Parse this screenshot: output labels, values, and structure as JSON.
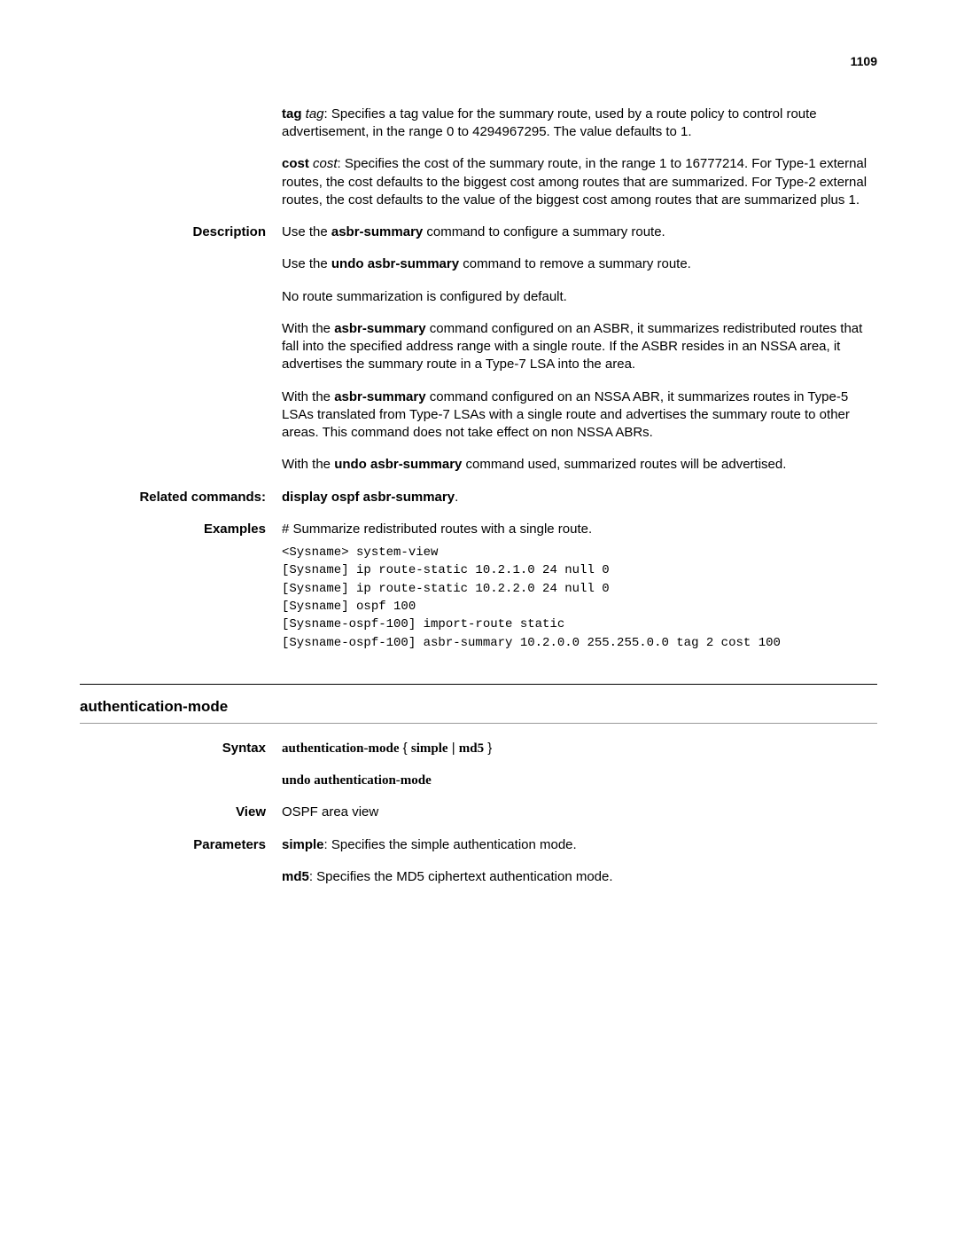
{
  "page_number": "1109",
  "params": {
    "tag": {
      "name": "tag",
      "var": "tag",
      "text": ": Specifies a tag value for the summary route, used by a route policy to control route advertisement, in the range 0 to 4294967295. The value defaults to 1."
    },
    "cost": {
      "name": "cost",
      "var": "cost",
      "text": ": Specifies the cost of the summary route, in the range 1 to 16777214. For Type-1 external routes, the cost defaults to the biggest cost among routes that are summarized. For Type-2 external routes, the cost defaults to the value of the biggest cost among routes that are summarized plus 1."
    }
  },
  "description": {
    "label": "Description",
    "p1_pre": "Use the ",
    "p1_cmd": "asbr-summary",
    "p1_post": " command to configure a summary route.",
    "p2_pre": "Use the ",
    "p2_cmd": "undo asbr-summary",
    "p2_post": " command to remove a summary route.",
    "p3": "No route summarization is configured by default.",
    "p4_pre": "With the ",
    "p4_cmd": "asbr-summary",
    "p4_post": " command configured on an ASBR, it summarizes redistributed routes that fall into the specified address range with a single route. If the ASBR resides in an NSSA area, it advertises the summary route in a Type-7 LSA into the area.",
    "p5_pre": "With the ",
    "p5_cmd": "asbr-summary",
    "p5_post": " command configured on an NSSA ABR, it summarizes routes in Type-5 LSAs translated from Type-7 LSAs with a single route and advertises the summary route to other areas. This command does not take effect on non NSSA ABRs.",
    "p6_pre": "With the ",
    "p6_cmd": "undo asbr-summary",
    "p6_post": " command used, summarized routes will be advertised."
  },
  "related": {
    "label": "Related commands:",
    "cmd": "display ospf asbr-summary",
    "period": "."
  },
  "examples": {
    "label": "Examples",
    "intro": "# Summarize redistributed routes with a single route.",
    "code": "<Sysname> system-view\n[Sysname] ip route-static 10.2.1.0 24 null 0\n[Sysname] ip route-static 10.2.2.0 24 null 0\n[Sysname] ospf 100\n[Sysname-ospf-100] import-route static\n[Sysname-ospf-100] asbr-summary 10.2.0.0 255.255.0.0 tag 2 cost 100"
  },
  "section": {
    "heading": "authentication-mode"
  },
  "syntax": {
    "label": "Syntax",
    "line1_cmd": "authentication-mode",
    "line1_brace_open": " { ",
    "line1_opt1": "simple",
    "line1_bar": " | ",
    "line1_opt2": "md5",
    "line1_brace_close": " }",
    "line2": "undo authentication-mode"
  },
  "view": {
    "label": "View",
    "text": "OSPF area view"
  },
  "parameters": {
    "label": "Parameters",
    "p1_name": "simple",
    "p1_text": ": Specifies the simple authentication mode.",
    "p2_name": "md5",
    "p2_text": ": Specifies the MD5 ciphertext authentication mode."
  }
}
